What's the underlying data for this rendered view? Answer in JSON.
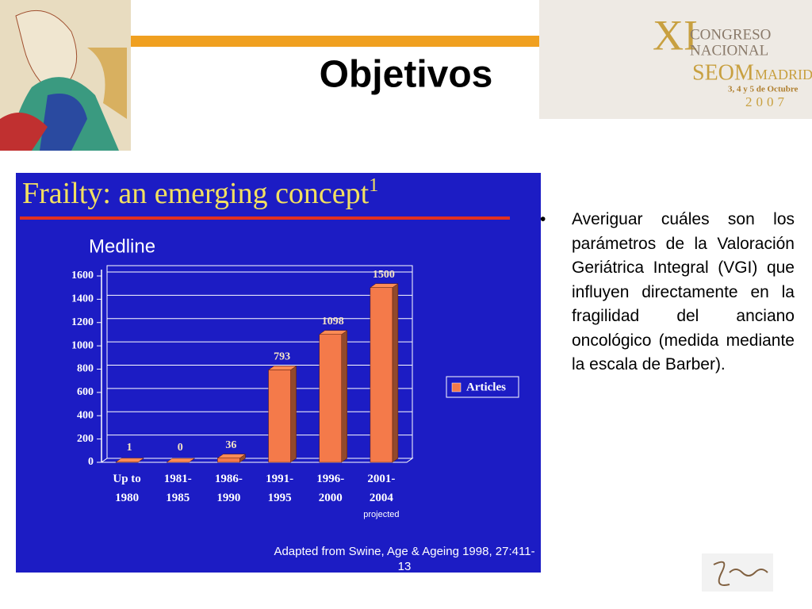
{
  "slide_title": "Objetivos",
  "logo": {
    "roman": "XI",
    "line1": "CONGRESO",
    "line2": "NACIONAL",
    "org": "SEOM",
    "city": "MADRID",
    "dates": "3, 4 y 5 de Octubre",
    "year": "2007"
  },
  "bullet": "Averiguar cuáles son los parámetros de la Valoración Geriátrica Integral (VGI) que influyen directamente en la fragilidad del anciano oncológico (medida mediante la escala de Barber).",
  "chart_data": {
    "type": "bar",
    "title": "Frailty: an emerging concept",
    "title_superscript": "1",
    "subtitle": "Medline",
    "categories": [
      "Up to 1980",
      "1981-1985",
      "1986-1990",
      "1991-1995",
      "1996-2000",
      "2001-2004"
    ],
    "annotation": "projected",
    "series": [
      {
        "name": "Articles",
        "color": "#f47a4a",
        "values": [
          1,
          0,
          36,
          793,
          1098,
          1500
        ]
      }
    ],
    "ylim": [
      0,
      1600
    ],
    "yticks": [
      0,
      200,
      400,
      600,
      800,
      1000,
      1200,
      1400,
      1600
    ],
    "grid": true,
    "source": "Adapted from Swine, Age & Ageing 1998, 27:411-13"
  }
}
